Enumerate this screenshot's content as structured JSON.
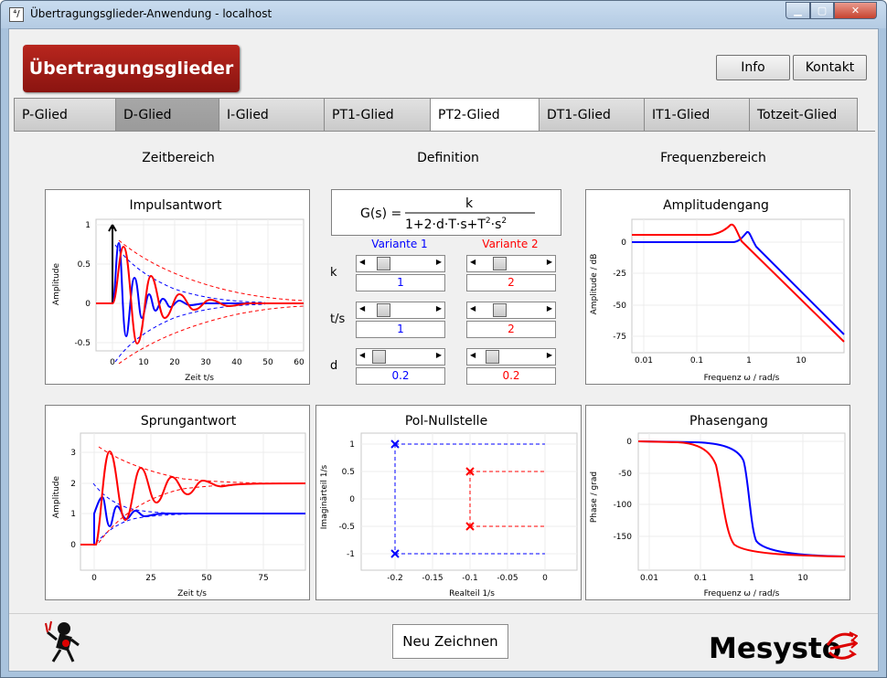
{
  "window": {
    "title": "Übertragungsglieder-Anwendung - localhost",
    "icon_text": "⁴/"
  },
  "header": {
    "brand": "Übertragungsglieder",
    "info_label": "Info",
    "kontakt_label": "Kontakt"
  },
  "tabs": [
    "P-Glied",
    "D-Glied",
    "I-Glied",
    "PT1-Glied",
    "PT2-Glied",
    "DT1-Glied",
    "IT1-Glied",
    "Totzeit-Glied"
  ],
  "active_tab": "PT2-Glied",
  "sections": {
    "time": "Zeitbereich",
    "definition": "Definition",
    "frequency": "Frequenzbereich"
  },
  "formula": {
    "lhs": "G(s) =",
    "numerator": "k"
  },
  "variants": {
    "v1_label": "Variante 1",
    "v2_label": "Variante 2",
    "v1_color": "#0000ff",
    "v2_color": "#ff0000"
  },
  "params": [
    {
      "name": "k",
      "v1": "1",
      "v2": "2",
      "v1_pos": 0.2,
      "v2_pos": 0.3
    },
    {
      "name": "t/s",
      "v1": "1",
      "v2": "2",
      "v1_pos": 0.2,
      "v2_pos": 0.3
    },
    {
      "name": "d",
      "v1": "0.2",
      "v2": "0.2",
      "v1_pos": 0.15,
      "v2_pos": 0.2
    }
  ],
  "plots": {
    "impuls": {
      "title": "Impulsantwort",
      "xlabel": "Zeit t/s",
      "ylabel": "Amplitude",
      "xticks": [
        "0",
        "10",
        "20",
        "30",
        "40",
        "50",
        "60"
      ],
      "yticks": [
        "1",
        "0.5",
        "0",
        "-0.5"
      ]
    },
    "sprung": {
      "title": "Sprungantwort",
      "xlabel": "Zeit t/s",
      "ylabel": "Amplitude",
      "xticks": [
        "0",
        "25",
        "50",
        "75"
      ],
      "yticks": [
        "3",
        "2",
        "1",
        "0"
      ]
    },
    "pol": {
      "title": "Pol-Nullstelle",
      "xlabel": "Realteil 1/s",
      "ylabel": "Imaginärteil 1/s",
      "xticks": [
        "-0.2",
        "-0.15",
        "-0.1",
        "-0.05",
        "0"
      ],
      "yticks": [
        "1",
        "0.5",
        "0",
        "-0.5",
        "-1"
      ]
    },
    "amp": {
      "title": "Amplitudengang",
      "xlabel": "Frequenz ω / rad/s",
      "ylabel": "Amplitude / dB",
      "xticks": [
        "0.01",
        "0.1",
        "1",
        "10"
      ],
      "yticks": [
        "0",
        "-25",
        "-50",
        "-75"
      ]
    },
    "phase": {
      "title": "Phasengang",
      "xlabel": "Frequenz ω / rad/s",
      "ylabel": "Phase / grad",
      "xticks": [
        "0.01",
        "0.1",
        "1",
        "10"
      ],
      "yticks": [
        "0",
        "-50",
        "-100",
        "-150"
      ]
    }
  },
  "footer": {
    "redraw_label": "Neu Zeichnen",
    "logo_text": "Mesysto"
  }
}
